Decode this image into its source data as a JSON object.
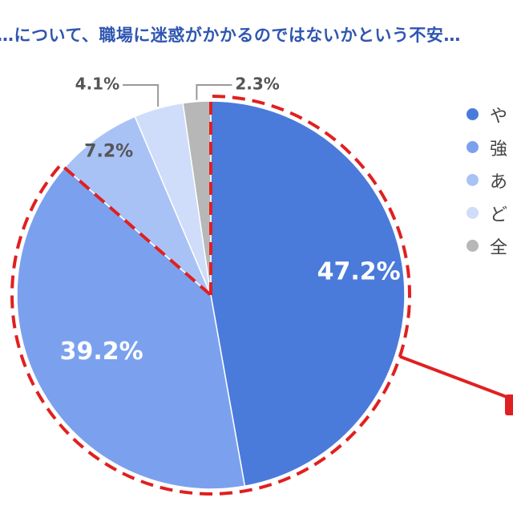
{
  "title": "…について、職場に迷惑がかかるのではないかという不安…",
  "chart_data": {
    "type": "pie",
    "slices": [
      {
        "label": "や…",
        "value": 47.2,
        "display": "47.2%",
        "color": "#4a7bdb"
      },
      {
        "label": "強…",
        "value": 39.2,
        "display": "39.2%",
        "color": "#7ba1ee"
      },
      {
        "label": "あ…",
        "value": 7.2,
        "display": "7.2%",
        "color": "#a9c2f5"
      },
      {
        "label": "ど…",
        "value": 4.1,
        "display": "4.1%",
        "color": "#cfdcfa"
      },
      {
        "label": "全…",
        "value": 2.3,
        "display": "2.3%",
        "color": "#b7b7b7"
      }
    ],
    "highlight_slices": [
      0,
      1
    ],
    "highlight_color": "#e02020"
  },
  "legend": {
    "items": [
      {
        "text": "や",
        "color": "#4a7bdb"
      },
      {
        "text": "強",
        "color": "#7ba1ee"
      },
      {
        "text": "あ",
        "color": "#a9c2f5"
      },
      {
        "text": "ど",
        "color": "#cfdcfa"
      },
      {
        "text": "全",
        "color": "#b7b7b7"
      }
    ]
  }
}
